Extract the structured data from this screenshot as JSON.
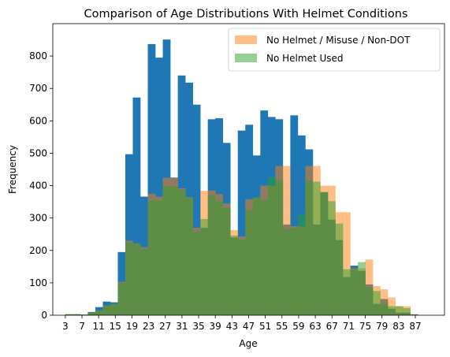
{
  "chart_data": {
    "type": "bar",
    "title": "Comparison of Age Distributions With Helmet Conditions",
    "xlabel": "Age",
    "ylabel": "Frequency",
    "xlim": [
      0,
      94
    ],
    "ylim": [
      0,
      900
    ],
    "bin_width": 1.8,
    "bin_start": 3,
    "x_ticks": [
      3,
      7,
      11,
      15,
      19,
      23,
      27,
      31,
      35,
      39,
      43,
      47,
      51,
      55,
      59,
      63,
      67,
      71,
      75,
      79,
      83,
      87
    ],
    "y_ticks": [
      0,
      100,
      200,
      300,
      400,
      500,
      600,
      700,
      800
    ],
    "legend_position": "top-right",
    "series": [
      {
        "name": "",
        "color": "#1f77b4",
        "opacity": 1,
        "values": [
          3,
          3,
          2,
          10,
          25,
          42,
          40,
          195,
          497,
          672,
          366,
          837,
          795,
          851,
          425,
          740,
          718,
          650,
          270,
          605,
          608,
          532,
          240,
          570,
          588,
          493,
          632,
          612,
          605,
          280,
          617,
          555,
          512,
          280,
          380,
          295,
          232,
          118,
          153,
          137,
          95,
          35,
          50,
          20,
          8,
          8,
          2,
          0
        ]
      },
      {
        "name": "No Helmet / Misuse / Non-DOT",
        "color": "#ff7f0e",
        "opacity": 0.5,
        "values": [
          3,
          3,
          2,
          8,
          15,
          30,
          35,
          103,
          230,
          222,
          210,
          375,
          366,
          424,
          424,
          392,
          365,
          270,
          384,
          385,
          374,
          345,
          263,
          243,
          358,
          363,
          400,
          400,
          461,
          461,
          275,
          274,
          461,
          461,
          400,
          400,
          318,
          318,
          145,
          145,
          172,
          90,
          80,
          55,
          28,
          28,
          3,
          0
        ]
      },
      {
        "name": "No Helmet Used",
        "color": "#2ca02c",
        "opacity": 0.5,
        "values": [
          3,
          3,
          2,
          8,
          15,
          30,
          35,
          100,
          225,
          222,
          205,
          355,
          355,
          398,
          398,
          388,
          365,
          258,
          297,
          370,
          352,
          332,
          246,
          233,
          325,
          365,
          355,
          427,
          417,
          265,
          270,
          313,
          415,
          412,
          380,
          352,
          283,
          142,
          142,
          164,
          86,
          75,
          35,
          28,
          28,
          22,
          3,
          0
        ]
      }
    ]
  }
}
